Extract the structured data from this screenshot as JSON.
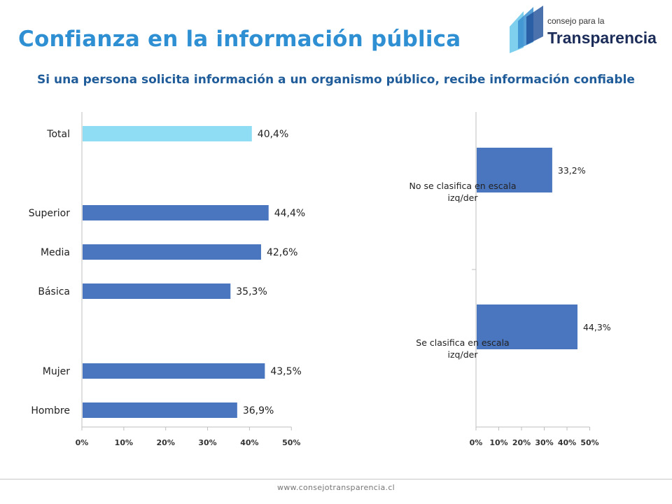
{
  "title": "Confianza en la información pública",
  "subtitle": "Si una persona solicita información a un organismo público, recibe información confiable",
  "logo": {
    "line1": "consejo para la",
    "line2": "Transparencia"
  },
  "footer_url": "www.consejotransparencia.cl",
  "colors": {
    "title": "#2e8fd3",
    "subtitle": "#1f5c99",
    "bar": "#4a76bf",
    "bar_total": "#8fdcf5",
    "axis": "#bfbfbf"
  },
  "chart_data": [
    {
      "type": "bar",
      "orientation": "horizontal",
      "categories": [
        "Total",
        "Superior",
        "Media",
        "Básica",
        "Mujer",
        "Hombre"
      ],
      "values": [
        40.4,
        44.4,
        42.6,
        35.3,
        43.5,
        36.9
      ],
      "value_labels": [
        "40,4%",
        "44,4%",
        "42,6%",
        "35,3%",
        "43,5%",
        "36,9%"
      ],
      "highlight": [
        "Total"
      ],
      "xlim": [
        0,
        50
      ],
      "xticks": [
        "0%",
        "10%",
        "20%",
        "30%",
        "40%",
        "50%"
      ],
      "grid": false,
      "title": "",
      "xlabel": "",
      "ylabel": ""
    },
    {
      "type": "bar",
      "orientation": "horizontal",
      "categories": [
        "No se clasifica en escala izq/der",
        "Se clasifica en escala izq/der"
      ],
      "values": [
        33.2,
        44.3
      ],
      "value_labels": [
        "33,2%",
        "44,3%"
      ],
      "xlim": [
        0,
        50
      ],
      "xticks": [
        "0%",
        "10%",
        "20%",
        "30%",
        "40%",
        "50%"
      ],
      "grid": false,
      "title": "",
      "xlabel": "",
      "ylabel": ""
    }
  ]
}
